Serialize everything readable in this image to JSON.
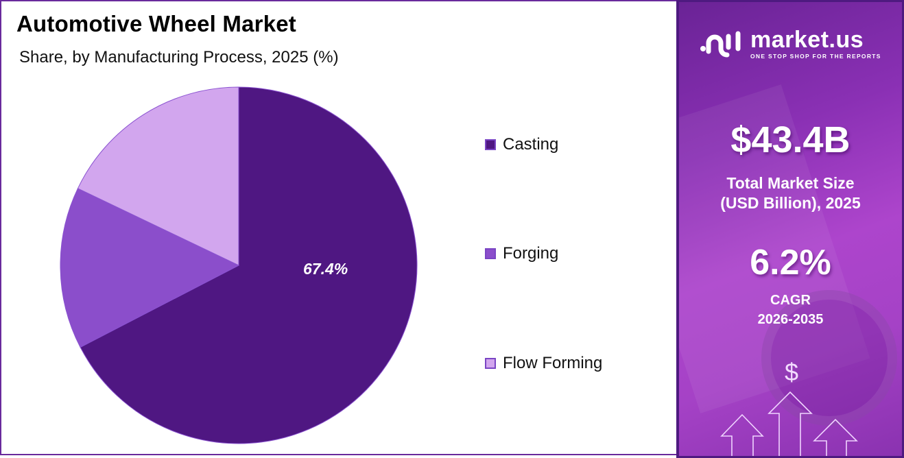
{
  "header": {
    "title": "Automotive Wheel Market",
    "subtitle": "Share, by Manufacturing Process, 2025 (%)"
  },
  "pie": {
    "slice_label": "67.4%"
  },
  "legend": {
    "items": [
      {
        "label": "Casting",
        "color": "#4f1782"
      },
      {
        "label": "Forging",
        "color": "#8b4ecb"
      },
      {
        "label": "Flow Forming",
        "color": "#d2a6ee"
      }
    ]
  },
  "sidebar": {
    "logo_name": "market.us",
    "logo_tagline": "ONE STOP SHOP FOR THE REPORTS",
    "market_size_value": "$43.4B",
    "market_size_label_line1": "Total Market Size",
    "market_size_label_line2": "(USD Billion), 2025",
    "cagr_value": "6.2%",
    "cagr_label_line1": "CAGR",
    "cagr_label_line2": "2026-2035",
    "dollar_icon": "$"
  },
  "colors": {
    "casting": "#4f1782",
    "forging": "#8b4ecb",
    "flow_forming": "#d2a6ee",
    "border": "#6a2a9c",
    "sidebar_bg": "#9a3cc0"
  },
  "chart_data": {
    "type": "pie",
    "title": "Automotive Wheel Market",
    "subtitle": "Share, by Manufacturing Process, 2025 (%)",
    "categories": [
      "Casting",
      "Forging",
      "Flow Forming"
    ],
    "values": [
      67.4,
      14.7,
      17.9
    ],
    "labeled_values": {
      "Casting": "67.4%"
    },
    "start_angle": "12 o'clock, clockwise",
    "legend_position": "right"
  }
}
